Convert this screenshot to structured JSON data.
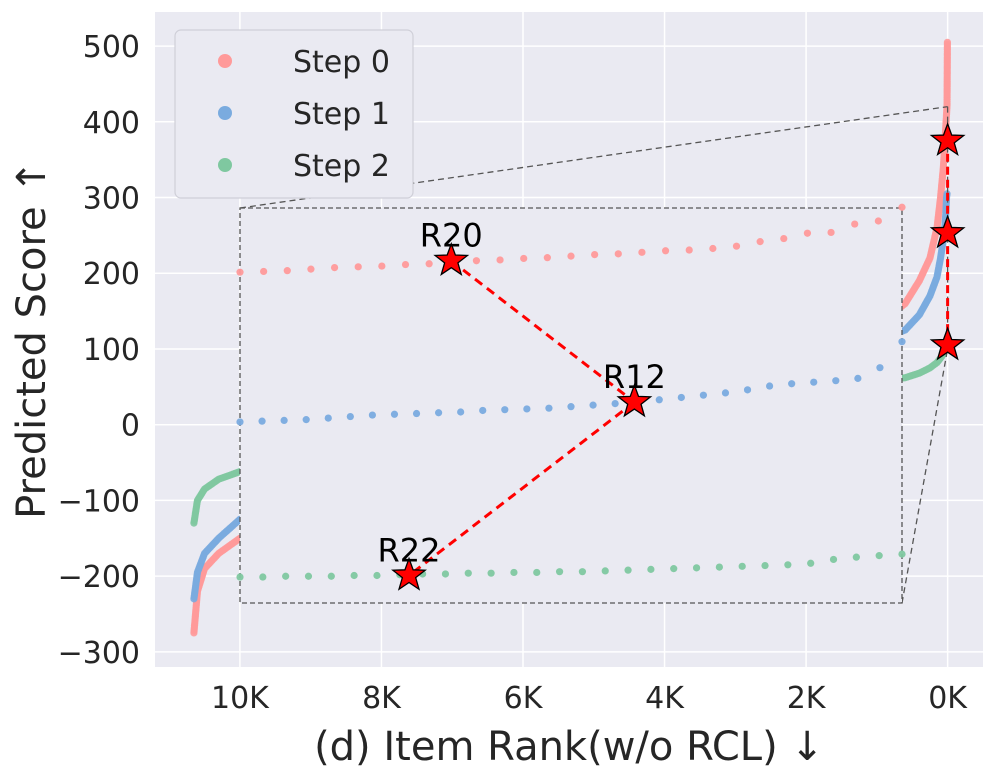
{
  "chart_data": {
    "type": "scatter",
    "xlabel": "(d) Item Rank(w/o RCL) ↓",
    "ylabel": "Predicted Score ↑",
    "xlim": [
      11200,
      -500
    ],
    "ylim": [
      -320,
      545
    ],
    "x_inverted": true,
    "grid": true,
    "legend_position": "top-left",
    "xticks": [
      10000,
      8000,
      6000,
      4000,
      2000,
      0
    ],
    "xtick_labels": [
      "10K",
      "8K",
      "6K",
      "4K",
      "2K",
      "0K"
    ],
    "yticks": [
      500,
      400,
      300,
      200,
      100,
      0,
      -100,
      -200,
      -300
    ],
    "ytick_labels": [
      "500",
      "400",
      "300",
      "200",
      "100",
      "0",
      "−100",
      "−200",
      "−300"
    ],
    "series": [
      {
        "name": "Step 0",
        "color": "#ff9a9a",
        "points": [
          [
            10650,
            -275
          ],
          [
            10600,
            -220
          ],
          [
            10500,
            -190
          ],
          [
            10300,
            -170
          ],
          [
            10000,
            -150
          ],
          [
            9500,
            -130
          ],
          [
            9000,
            -110
          ],
          [
            8500,
            -95
          ],
          [
            8000,
            -80
          ],
          [
            7000,
            -60
          ],
          [
            6000,
            -40
          ],
          [
            5000,
            -20
          ],
          [
            4000,
            0
          ],
          [
            3000,
            20
          ],
          [
            2000,
            50
          ],
          [
            1500,
            90
          ],
          [
            1000,
            130
          ],
          [
            600,
            160
          ],
          [
            400,
            190
          ],
          [
            250,
            220
          ],
          [
            150,
            260
          ],
          [
            100,
            300
          ],
          [
            60,
            340
          ],
          [
            40,
            370
          ],
          [
            25,
            395
          ],
          [
            15,
            410
          ],
          [
            8,
            422
          ],
          [
            3,
            505
          ]
        ]
      },
      {
        "name": "Step 1",
        "color": "#7aabdf",
        "points": [
          [
            10650,
            -230
          ],
          [
            10600,
            -195
          ],
          [
            10500,
            -170
          ],
          [
            10300,
            -150
          ],
          [
            10000,
            -125
          ],
          [
            9500,
            -110
          ],
          [
            9000,
            -90
          ],
          [
            8500,
            -75
          ],
          [
            8000,
            -60
          ],
          [
            7000,
            -40
          ],
          [
            6000,
            -20
          ],
          [
            5000,
            0
          ],
          [
            4000,
            15
          ],
          [
            3000,
            35
          ],
          [
            2000,
            60
          ],
          [
            1500,
            85
          ],
          [
            1000,
            110
          ],
          [
            600,
            125
          ],
          [
            400,
            145
          ],
          [
            250,
            170
          ],
          [
            150,
            195
          ],
          [
            100,
            220
          ],
          [
            60,
            245
          ],
          [
            40,
            260
          ],
          [
            25,
            280
          ],
          [
            15,
            300
          ],
          [
            8,
            305
          ]
        ]
      },
      {
        "name": "Step 2",
        "color": "#7fc8a0",
        "points": [
          [
            10650,
            -130
          ],
          [
            10600,
            -100
          ],
          [
            10500,
            -85
          ],
          [
            10300,
            -72
          ],
          [
            10000,
            -62
          ],
          [
            9500,
            -55
          ],
          [
            9000,
            -45
          ],
          [
            8500,
            -35
          ],
          [
            8000,
            -25
          ],
          [
            7000,
            -10
          ],
          [
            6000,
            0
          ],
          [
            5000,
            10
          ],
          [
            4000,
            20
          ],
          [
            3000,
            30
          ],
          [
            2000,
            40
          ],
          [
            1500,
            50
          ],
          [
            1000,
            58
          ],
          [
            600,
            62
          ],
          [
            400,
            68
          ],
          [
            250,
            75
          ],
          [
            150,
            82
          ],
          [
            100,
            88
          ],
          [
            60,
            93
          ],
          [
            40,
            98
          ],
          [
            25,
            102
          ],
          [
            15,
            106
          ],
          [
            8,
            110
          ]
        ]
      }
    ],
    "zoom_region": {
      "x": [
        0,
        0
      ],
      "y": [
        -40,
        420
      ]
    },
    "inset": {
      "x_range": [
        10000,
        600
      ],
      "y_range": [
        -232,
        285
      ],
      "series": [
        {
          "name": "Step 0",
          "color": "#ff9a9a",
          "values": [
            201,
            202,
            203,
            205,
            207,
            208,
            209,
            211,
            212,
            214,
            216,
            217,
            219,
            220,
            222,
            224,
            225,
            227,
            229,
            230,
            232,
            235,
            241,
            245,
            252,
            253,
            264,
            268,
            286
          ]
        },
        {
          "name": "Step 1",
          "color": "#7aabdf",
          "values": [
            5,
            6,
            7,
            8,
            10,
            12,
            14,
            15,
            16,
            17,
            18,
            20,
            21,
            22,
            23,
            25,
            27,
            29,
            31,
            34,
            37,
            40,
            43,
            47,
            52,
            55,
            57,
            59,
            62,
            76,
            110
          ]
        },
        {
          "name": "Step 2",
          "color": "#7fc8a0",
          "values": [
            -198,
            -198,
            -197,
            -197,
            -197,
            -196,
            -196,
            -195,
            -194,
            -194,
            -193,
            -193,
            -192,
            -192,
            -191,
            -191,
            -190,
            -189,
            -188,
            -187,
            -186,
            -185,
            -184,
            -183,
            -182,
            -180,
            -175,
            -172,
            -170,
            -168
          ]
        }
      ],
      "connected_points": [
        {
          "label": "R20",
          "x": 7000,
          "y": 216
        },
        {
          "label": "R12",
          "x": 4400,
          "y": 31
        },
        {
          "label": "R22",
          "x": 7600,
          "y": -196
        }
      ]
    },
    "highlight_points": [
      {
        "x": 0,
        "y": 375
      },
      {
        "x": 0,
        "y": 253
      },
      {
        "x": 0,
        "y": 105
      }
    ]
  }
}
